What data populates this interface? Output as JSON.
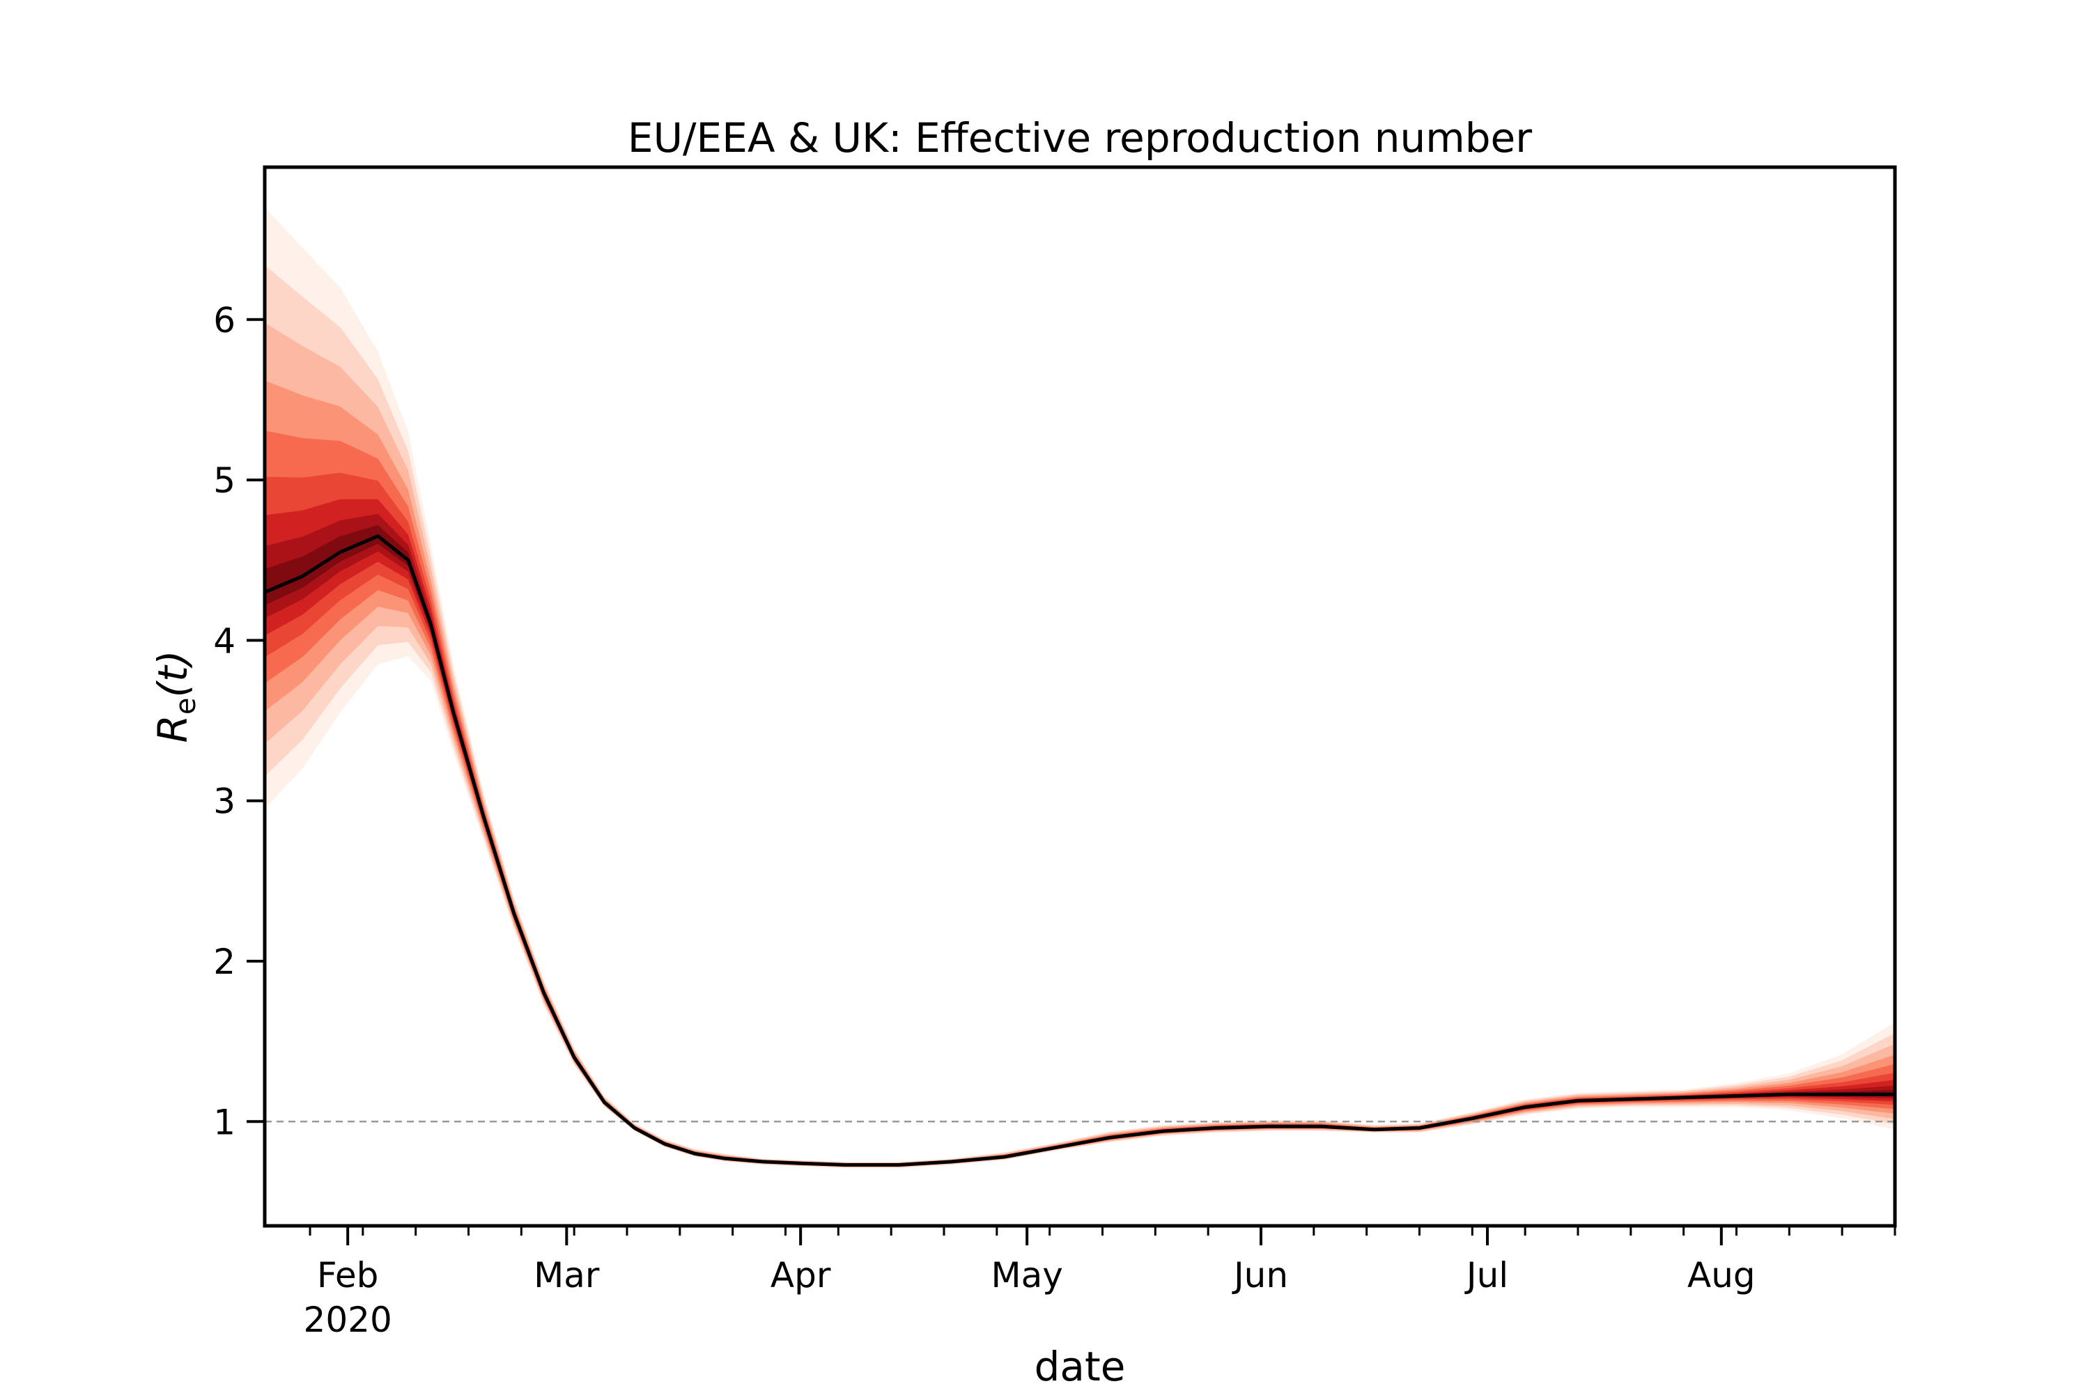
{
  "chart_data": {
    "type": "line",
    "title": "EU/EEA & UK: Effective reproduction number",
    "xlabel": "date",
    "ylabel_main": "R",
    "ylabel_sub": "e",
    "ylabel_arg": "(t)",
    "x_range": [
      "2020-01-21",
      "2020-08-24"
    ],
    "ylim": [
      0.35,
      6.95
    ],
    "y_ticks": [
      1,
      2,
      3,
      4,
      5,
      6
    ],
    "y_tick_labels": [
      "1",
      "2",
      "3",
      "4",
      "5",
      "6"
    ],
    "x_month_ticks": [
      {
        "date": "2020-02-01",
        "label": "Feb",
        "sublabel": "2020"
      },
      {
        "date": "2020-03-01",
        "label": "Mar",
        "sublabel": ""
      },
      {
        "date": "2020-04-01",
        "label": "Apr",
        "sublabel": ""
      },
      {
        "date": "2020-05-01",
        "label": "May",
        "sublabel": ""
      },
      {
        "date": "2020-06-01",
        "label": "Jun",
        "sublabel": ""
      },
      {
        "date": "2020-07-01",
        "label": "Jul",
        "sublabel": ""
      },
      {
        "date": "2020-08-01",
        "label": "Aug",
        "sublabel": ""
      }
    ],
    "reference_line": {
      "y": 1,
      "style": "dashed",
      "color": "#999999"
    },
    "grid": false,
    "colors": {
      "median": "#000000",
      "band": "#de2d26",
      "band_core": "#a50f15"
    },
    "series": [
      {
        "x": [
          "2020-01-21",
          "2020-01-26",
          "2020-01-31",
          "2020-02-05",
          "2020-02-09",
          "2020-02-12",
          "2020-02-15",
          "2020-02-19",
          "2020-02-23",
          "2020-02-27",
          "2020-03-02",
          "2020-03-06",
          "2020-03-10",
          "2020-03-14",
          "2020-03-18",
          "2020-03-22",
          "2020-03-27",
          "2020-04-01",
          "2020-04-07",
          "2020-04-14",
          "2020-04-21",
          "2020-04-28",
          "2020-05-05",
          "2020-05-12",
          "2020-05-19",
          "2020-05-26",
          "2020-06-02",
          "2020-06-09",
          "2020-06-16",
          "2020-06-22",
          "2020-06-29",
          "2020-07-06",
          "2020-07-13",
          "2020-07-20",
          "2020-07-27",
          "2020-08-03",
          "2020-08-10",
          "2020-08-17",
          "2020-08-24"
        ],
        "median": [
          4.3,
          4.4,
          4.55,
          4.65,
          4.5,
          4.1,
          3.55,
          2.9,
          2.3,
          1.8,
          1.4,
          1.12,
          0.96,
          0.86,
          0.8,
          0.77,
          0.75,
          0.74,
          0.73,
          0.73,
          0.75,
          0.78,
          0.84,
          0.9,
          0.94,
          0.96,
          0.97,
          0.97,
          0.95,
          0.96,
          1.02,
          1.09,
          1.13,
          1.14,
          1.15,
          1.16,
          1.17,
          1.17,
          1.17
        ],
        "lower": [
          2.95,
          3.2,
          3.55,
          3.85,
          3.9,
          3.75,
          3.3,
          2.75,
          2.2,
          1.72,
          1.35,
          1.09,
          0.94,
          0.84,
          0.78,
          0.75,
          0.73,
          0.72,
          0.71,
          0.71,
          0.73,
          0.76,
          0.82,
          0.87,
          0.91,
          0.93,
          0.94,
          0.94,
          0.93,
          0.93,
          0.98,
          1.04,
          1.08,
          1.09,
          1.09,
          1.09,
          1.07,
          1.02,
          0.95
        ],
        "upper": [
          6.7,
          6.45,
          6.2,
          5.8,
          5.3,
          4.6,
          3.85,
          3.05,
          2.4,
          1.88,
          1.46,
          1.16,
          0.99,
          0.89,
          0.83,
          0.8,
          0.77,
          0.76,
          0.75,
          0.75,
          0.77,
          0.81,
          0.87,
          0.94,
          0.98,
          1.0,
          1.01,
          1.01,
          0.98,
          0.99,
          1.06,
          1.14,
          1.18,
          1.19,
          1.2,
          1.24,
          1.3,
          1.42,
          1.62
        ]
      }
    ]
  }
}
